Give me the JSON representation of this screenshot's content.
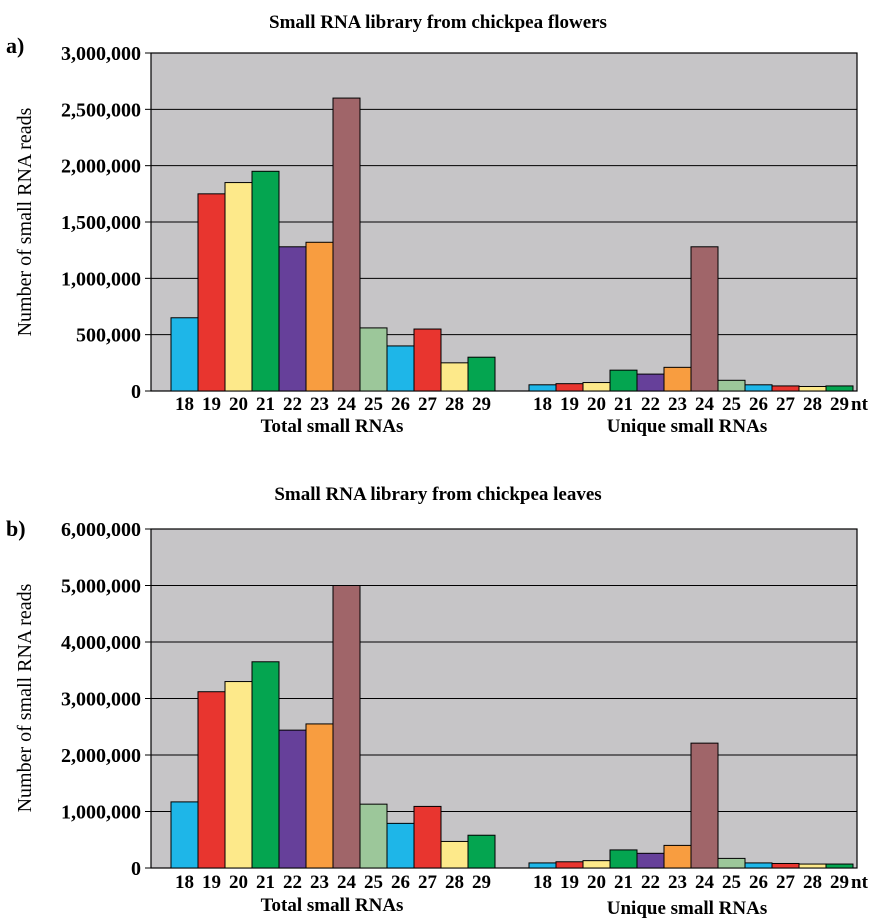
{
  "panel_colors": [
    "#1eb6e8",
    "#e8352f",
    "#fde98a",
    "#04a550",
    "#66409a",
    "#f89d40",
    "#a06569",
    "#9cc79a",
    "#1eb6e8",
    "#e8352f",
    "#fde98a",
    "#04a550"
  ],
  "plot_background": "#c6c5c7",
  "chart_data": [
    {
      "type": "bar",
      "panel_label": "a)",
      "title": "Small RNA library from chickpea flowers",
      "ylabel": "Number of small RNA reads",
      "ylim": [
        0,
        3000000
      ],
      "yticks": [
        0,
        500000,
        1000000,
        1500000,
        2000000,
        2500000,
        3000000
      ],
      "ytick_labels": [
        "0",
        "500,000",
        "1,000,000",
        "1,500,000",
        "2,000,000",
        "2,500,000",
        "3,000,000"
      ],
      "grid": true,
      "unit_label": "nt",
      "groups": [
        {
          "name": "Total small RNAs",
          "categories": [
            "18",
            "19",
            "20",
            "21",
            "22",
            "23",
            "24",
            "25",
            "26",
            "27",
            "28",
            "29"
          ],
          "values": [
            650000,
            1750000,
            1850000,
            1950000,
            1280000,
            1320000,
            2600000,
            560000,
            400000,
            550000,
            250000,
            300000
          ]
        },
        {
          "name": "Unique small RNAs",
          "categories": [
            "18",
            "19",
            "20",
            "21",
            "22",
            "23",
            "24",
            "25",
            "26",
            "27",
            "28",
            "29"
          ],
          "values": [
            55000,
            65000,
            75000,
            185000,
            150000,
            210000,
            1280000,
            95000,
            55000,
            45000,
            40000,
            45000
          ]
        }
      ]
    },
    {
      "type": "bar",
      "panel_label": "b)",
      "title": "Small RNA library from chickpea leaves",
      "ylabel": "Number of small RNA reads",
      "ylim": [
        0,
        6000000
      ],
      "yticks": [
        0,
        1000000,
        2000000,
        3000000,
        4000000,
        5000000,
        6000000
      ],
      "ytick_labels": [
        "0",
        "1,000,000",
        "2,000,000",
        "3,000,000",
        "4,000,000",
        "5,000,000",
        "6,000,000"
      ],
      "grid": true,
      "unit_label": "nt",
      "groups": [
        {
          "name": "Total small RNAs",
          "categories": [
            "18",
            "19",
            "20",
            "21",
            "22",
            "23",
            "24",
            "25",
            "26",
            "27",
            "28",
            "29"
          ],
          "values": [
            1170000,
            3120000,
            3300000,
            3650000,
            2440000,
            2550000,
            5000000,
            1130000,
            790000,
            1090000,
            470000,
            580000
          ]
        },
        {
          "name": "Unique small RNAs",
          "categories": [
            "18",
            "19",
            "20",
            "21",
            "22",
            "23",
            "24",
            "25",
            "26",
            "27",
            "28",
            "29"
          ],
          "values": [
            90000,
            110000,
            130000,
            320000,
            260000,
            400000,
            2210000,
            170000,
            90000,
            80000,
            70000,
            70000
          ]
        }
      ]
    }
  ]
}
